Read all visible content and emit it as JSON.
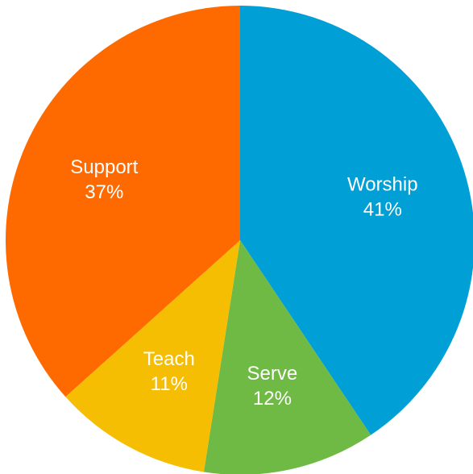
{
  "chart_data": {
    "type": "pie",
    "title": "",
    "slices": [
      {
        "label": "Worship",
        "value": 41,
        "value_label": "41%",
        "color": "#009fd5"
      },
      {
        "label": "Serve",
        "value": 12,
        "value_label": "12%",
        "color": "#6fba44"
      },
      {
        "label": "Teach",
        "value": 11,
        "value_label": "11%",
        "color": "#f5be02"
      },
      {
        "label": "Support",
        "value": 37,
        "value_label": "37%",
        "color": "#ff6a00"
      }
    ],
    "start_angle": "12 o'clock",
    "direction": "clockwise",
    "legend": "none",
    "label_color": "#ffffff"
  }
}
